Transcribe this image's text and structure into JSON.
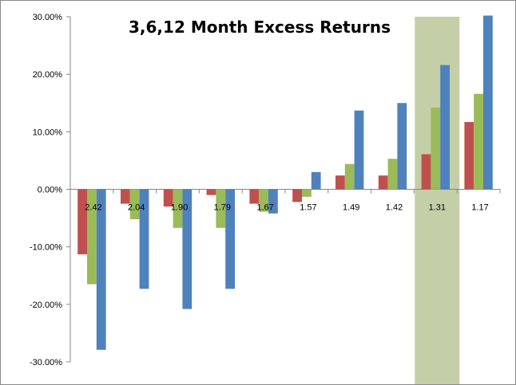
{
  "chart_data": {
    "type": "bar",
    "title": "3,6,12 Month Excess Returns",
    "xlabel": "",
    "ylabel": "",
    "categories": [
      "2.42",
      "2.04",
      "1.90",
      "1.79",
      "1.67",
      "1.57",
      "1.49",
      "1.42",
      "1.31",
      "1.17"
    ],
    "series": [
      {
        "name": "3 Month",
        "color": "#c0504d",
        "values": [
          -11.3,
          -2.5,
          -3.0,
          -1.0,
          -2.5,
          -2.2,
          2.4,
          2.4,
          6.1,
          11.7
        ]
      },
      {
        "name": "6 Month",
        "color": "#9bbb59",
        "values": [
          -16.5,
          -5.2,
          -6.7,
          -6.7,
          -3.9,
          -1.3,
          4.4,
          5.3,
          14.2,
          16.6
        ]
      },
      {
        "name": "12 Month",
        "color": "#4f81bd",
        "values": [
          -27.9,
          -17.3,
          -20.8,
          -17.3,
          -4.2,
          3.0,
          13.7,
          15.0,
          21.6,
          30.2
        ]
      }
    ],
    "ylim": [
      -30,
      30
    ],
    "y_ticks": [
      "-30.00%",
      "-20.00%",
      "-10.00%",
      "0.00%",
      "10.00%",
      "20.00%",
      "30.00%"
    ],
    "y_tick_values": [
      -30,
      -20,
      -10,
      0,
      10,
      20,
      30
    ],
    "highlight_category": "1.31",
    "highlight_color": "#c4cfa8",
    "grid": false,
    "legend": "none"
  }
}
